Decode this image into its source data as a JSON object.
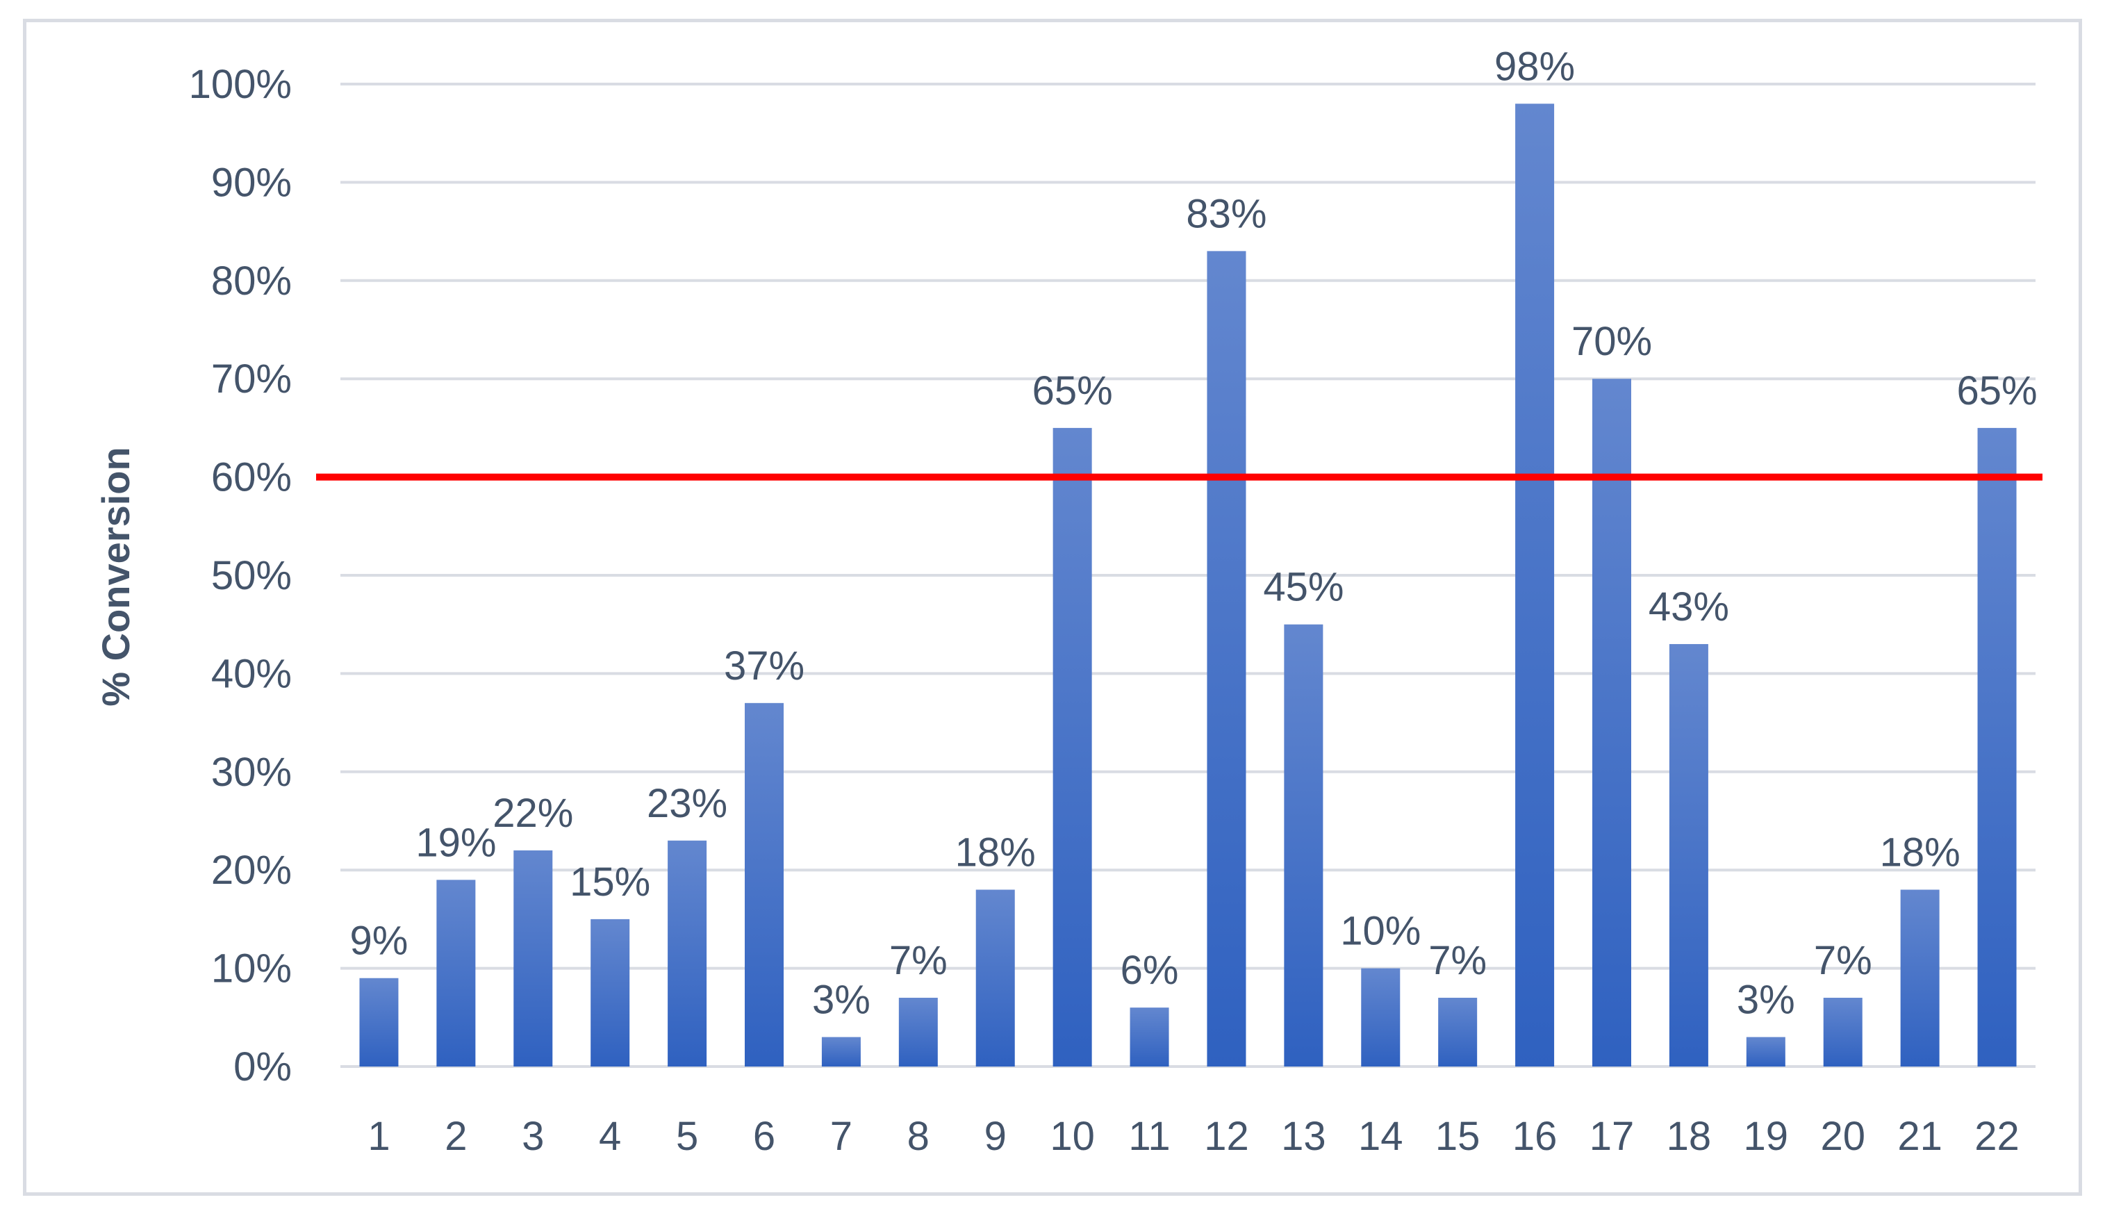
{
  "chart_data": {
    "type": "bar",
    "title": "",
    "xlabel": "",
    "ylabel": "% Conversion",
    "categories": [
      "1",
      "2",
      "3",
      "4",
      "5",
      "6",
      "7",
      "8",
      "9",
      "10",
      "11",
      "12",
      "13",
      "14",
      "15",
      "16",
      "17",
      "18",
      "19",
      "20",
      "21",
      "22"
    ],
    "values": [
      9,
      19,
      22,
      15,
      23,
      37,
      3,
      7,
      18,
      65,
      6,
      83,
      45,
      10,
      7,
      98,
      70,
      43,
      3,
      7,
      18,
      65
    ],
    "data_labels": [
      "9%",
      "19%",
      "22%",
      "15%",
      "23%",
      "37%",
      "3%",
      "7%",
      "18%",
      "65%",
      "6%",
      "83%",
      "45%",
      "10%",
      "7%",
      "98%",
      "70%",
      "43%",
      "3%",
      "7%",
      "18%",
      "65%"
    ],
    "ylim": [
      0,
      100
    ],
    "yticks": [
      0,
      10,
      20,
      30,
      40,
      50,
      60,
      70,
      80,
      90,
      100
    ],
    "ytick_labels": [
      "0%",
      "10%",
      "20%",
      "30%",
      "40%",
      "50%",
      "60%",
      "70%",
      "80%",
      "90%",
      "100%"
    ],
    "grid": true,
    "legend": "none",
    "threshold_line": {
      "value": 60,
      "color": "#ff0000"
    },
    "colors": {
      "bar_top": "#6387cf",
      "bar_bottom": "#2f61c0",
      "grid": "#d9dce3",
      "text": "#44546a",
      "frame": "#d9dce3"
    }
  }
}
